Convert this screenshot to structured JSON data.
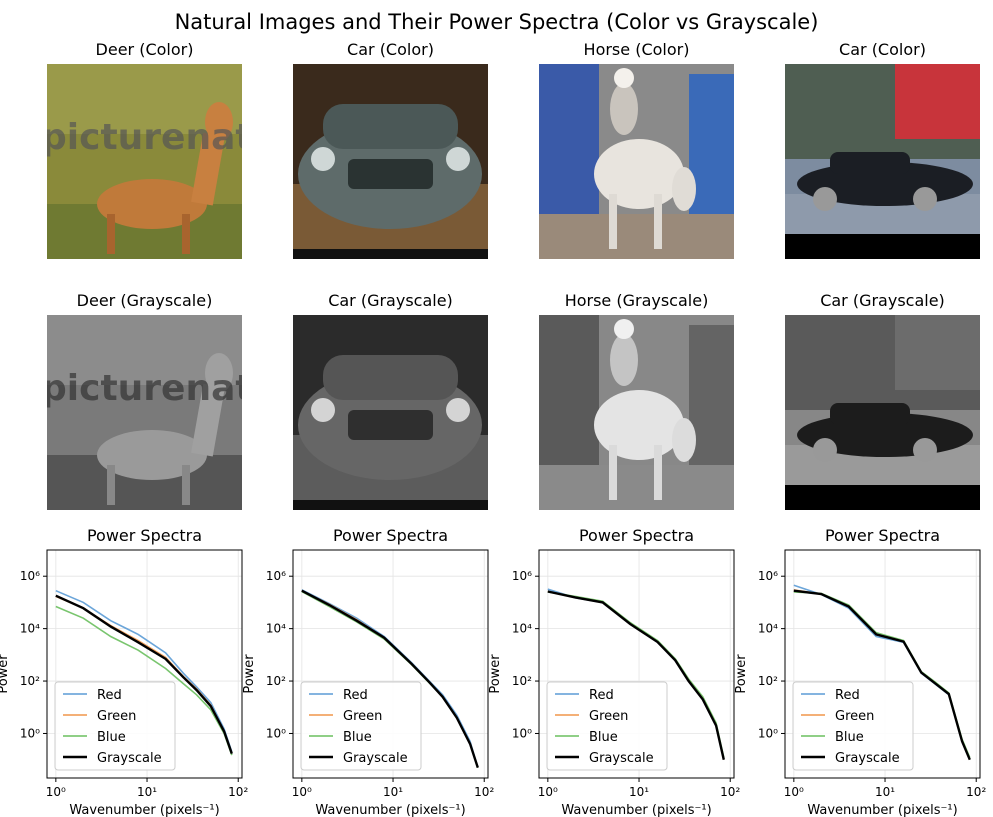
{
  "figure": {
    "suptitle": "Natural Images and Their Power Spectra (Color vs Grayscale)"
  },
  "rows": {
    "color_titles": [
      "Deer (Color)",
      "Car (Color)",
      "Horse (Color)",
      "Car (Color)"
    ],
    "gray_titles": [
      "Deer (Grayscale)",
      "Car (Grayscale)",
      "Horse (Grayscale)",
      "Car (Grayscale)"
    ],
    "spectra_titles": [
      "Power Spectra",
      "Power Spectra",
      "Power Spectra",
      "Power Spectra"
    ]
  },
  "images": [
    {
      "subject": "deer",
      "watermark": "picturenatio"
    },
    {
      "subject": "car"
    },
    {
      "subject": "horse"
    },
    {
      "subject": "car"
    }
  ],
  "colors": {
    "red": "#5b9bd5",
    "green": "#f0964a",
    "blue": "#6abf5e",
    "grayscale": "#000000"
  },
  "chart_data": [
    {
      "type": "line",
      "title": "Power Spectra",
      "xlabel": "Wavenumber (pixels⁻¹)",
      "ylabel": "Power",
      "xscale": "log",
      "yscale": "log",
      "xlim": [
        0.8,
        110
      ],
      "ylim": [
        0.02,
        10000000
      ],
      "xticks": [
        "10⁰",
        "10¹",
        "10²"
      ],
      "yticks": [
        "10⁰",
        "10²",
        "10⁴",
        "10⁶"
      ],
      "grid": true,
      "legend": "lower-left",
      "x": [
        1,
        2,
        4,
        8,
        16,
        25,
        35,
        50,
        70,
        85
      ],
      "series": [
        {
          "name": "Red",
          "values": [
            280000,
            100000,
            20000,
            6000,
            1200,
            200,
            60,
            15,
            1.5,
            0.2
          ]
        },
        {
          "name": "Green",
          "values": [
            170000,
            60000,
            13000,
            3500,
            800,
            150,
            50,
            12,
            1.2,
            0.18
          ]
        },
        {
          "name": "Blue",
          "values": [
            70000,
            25000,
            5000,
            1500,
            300,
            80,
            30,
            8,
            1.0,
            0.15
          ]
        },
        {
          "name": "Grayscale",
          "values": [
            180000,
            60000,
            12000,
            3000,
            700,
            140,
            45,
            11,
            1.2,
            0.17
          ]
        }
      ]
    },
    {
      "type": "line",
      "title": "Power Spectra",
      "xlabel": "Wavenumber (pixels⁻¹)",
      "ylabel": "Power",
      "xscale": "log",
      "yscale": "log",
      "xlim": [
        0.8,
        110
      ],
      "ylim": [
        0.02,
        10000000
      ],
      "xticks": [
        "10⁰",
        "10¹",
        "10²"
      ],
      "yticks": [
        "10⁰",
        "10²",
        "10⁴",
        "10⁶"
      ],
      "grid": true,
      "legend": "lower-left",
      "x": [
        1,
        2,
        4,
        8,
        16,
        25,
        35,
        50,
        70,
        85
      ],
      "series": [
        {
          "name": "Red",
          "values": [
            300000,
            90000,
            25000,
            5000,
            500,
            100,
            30,
            5,
            0.5,
            0.05
          ]
        },
        {
          "name": "Green",
          "values": [
            280000,
            85000,
            22000,
            4500,
            450,
            90,
            25,
            4,
            0.4,
            0.05
          ]
        },
        {
          "name": "Blue",
          "values": [
            260000,
            70000,
            18000,
            4000,
            420,
            85,
            25,
            4,
            0.4,
            0.05
          ]
        },
        {
          "name": "Grayscale",
          "values": [
            280000,
            80000,
            20000,
            4500,
            450,
            90,
            25,
            4,
            0.4,
            0.05
          ]
        }
      ]
    },
    {
      "type": "line",
      "title": "Power Spectra",
      "xlabel": "Wavenumber (pixels⁻¹)",
      "ylabel": "Power",
      "xscale": "log",
      "yscale": "log",
      "xlim": [
        0.8,
        110
      ],
      "ylim": [
        0.02,
        10000000
      ],
      "xticks": [
        "10⁰",
        "10¹",
        "10²"
      ],
      "yticks": [
        "10⁰",
        "10²",
        "10⁴",
        "10⁶"
      ],
      "grid": true,
      "legend": "lower-left",
      "x": [
        1,
        2,
        4,
        8,
        16,
        25,
        35,
        50,
        70,
        85
      ],
      "series": [
        {
          "name": "Red",
          "values": [
            320000,
            150000,
            100000,
            15000,
            3000,
            600,
            100,
            20,
            2,
            0.1
          ]
        },
        {
          "name": "Green",
          "values": [
            260000,
            160000,
            105000,
            16000,
            3200,
            650,
            110,
            22,
            2.2,
            0.1
          ]
        },
        {
          "name": "Blue",
          "values": [
            250000,
            170000,
            110000,
            17000,
            3500,
            700,
            120,
            25,
            2.5,
            0.12
          ]
        },
        {
          "name": "Grayscale",
          "values": [
            260000,
            155000,
            100000,
            15000,
            3100,
            620,
            100,
            20,
            2,
            0.1
          ]
        }
      ]
    },
    {
      "type": "line",
      "title": "Power Spectra",
      "xlabel": "Wavenumber (pixels⁻¹)",
      "ylabel": "Power",
      "xscale": "log",
      "yscale": "log",
      "xlim": [
        0.8,
        110
      ],
      "ylim": [
        0.02,
        10000000
      ],
      "xticks": [
        "10⁰",
        "10¹",
        "10²"
      ],
      "yticks": [
        "10⁰",
        "10²",
        "10⁴",
        "10⁶"
      ],
      "grid": true,
      "legend": "lower-left",
      "x": [
        1,
        2,
        4,
        8,
        16,
        25,
        35,
        50,
        70,
        85
      ],
      "series": [
        {
          "name": "Red",
          "values": [
            450000,
            200000,
            60000,
            5000,
            3000,
            200,
            80,
            30,
            0.5,
            0.1
          ]
        },
        {
          "name": "Green",
          "values": [
            300000,
            210000,
            70000,
            6000,
            3300,
            220,
            90,
            33,
            0.55,
            0.1
          ]
        },
        {
          "name": "Blue",
          "values": [
            250000,
            220000,
            80000,
            7000,
            3500,
            230,
            95,
            35,
            0.6,
            0.12
          ]
        },
        {
          "name": "Grayscale",
          "values": [
            280000,
            210000,
            70000,
            6000,
            3200,
            210,
            85,
            32,
            0.5,
            0.1
          ]
        }
      ]
    }
  ]
}
